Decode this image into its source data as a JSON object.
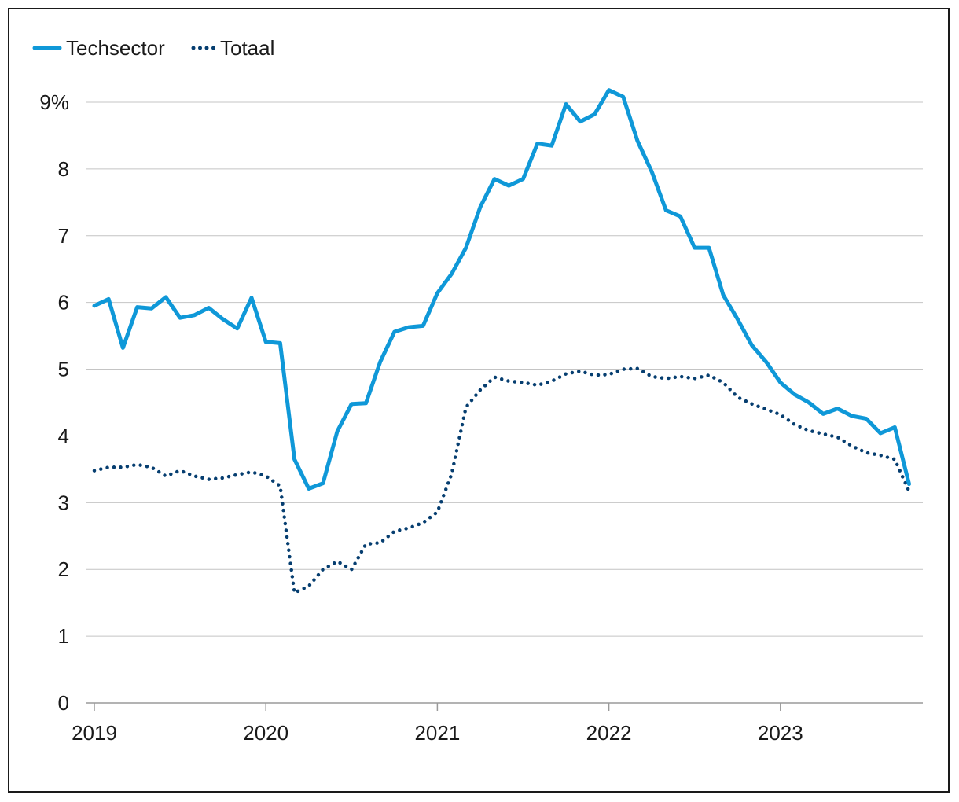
{
  "chart_data": {
    "type": "line",
    "title": "",
    "xlabel": "",
    "ylabel": "",
    "ylim": [
      0,
      9
    ],
    "xlim": [
      "2019-01",
      "2023-10"
    ],
    "y_ticks": [
      "0",
      "1",
      "2",
      "3",
      "4",
      "5",
      "6",
      "7",
      "8",
      "9%"
    ],
    "x_ticks": [
      "2019",
      "2020",
      "2021",
      "2022",
      "2023"
    ],
    "grid": "horizontal",
    "legend": "top-left",
    "x": [
      "2019-01",
      "2019-02",
      "2019-03",
      "2019-04",
      "2019-05",
      "2019-06",
      "2019-07",
      "2019-08",
      "2019-09",
      "2019-10",
      "2019-11",
      "2019-12",
      "2020-01",
      "2020-02",
      "2020-03",
      "2020-04",
      "2020-05",
      "2020-06",
      "2020-07",
      "2020-08",
      "2020-09",
      "2020-10",
      "2020-11",
      "2020-12",
      "2021-01",
      "2021-02",
      "2021-03",
      "2021-04",
      "2021-05",
      "2021-06",
      "2021-07",
      "2021-08",
      "2021-09",
      "2021-10",
      "2021-11",
      "2021-12",
      "2022-01",
      "2022-02",
      "2022-03",
      "2022-04",
      "2022-05",
      "2022-06",
      "2022-07",
      "2022-08",
      "2022-09",
      "2022-10",
      "2022-11",
      "2022-12",
      "2023-01",
      "2023-02",
      "2023-03",
      "2023-04",
      "2023-05",
      "2023-06",
      "2023-07",
      "2023-08",
      "2023-09",
      "2023-10"
    ],
    "series": [
      {
        "name": "Techsector",
        "style": "solid",
        "color": "#0f98d8",
        "values": [
          5.95,
          6.05,
          5.32,
          5.93,
          5.91,
          6.08,
          5.77,
          5.81,
          5.92,
          5.75,
          5.61,
          6.07,
          5.41,
          5.39,
          3.65,
          3.21,
          3.29,
          4.07,
          4.48,
          4.49,
          5.11,
          5.56,
          5.63,
          5.65,
          6.14,
          6.43,
          6.82,
          7.43,
          7.85,
          7.75,
          7.85,
          8.38,
          8.35,
          8.97,
          8.71,
          8.82,
          9.18,
          9.08,
          8.42,
          7.96,
          7.38,
          7.29,
          6.82,
          6.82,
          6.11,
          5.75,
          5.36,
          5.11,
          4.8,
          4.62,
          4.5,
          4.33,
          4.41,
          4.3,
          4.26,
          4.04,
          4.13,
          3.28
        ]
      },
      {
        "name": "Totaal",
        "style": "dotted",
        "color": "#063e70",
        "values": [
          3.48,
          3.53,
          3.53,
          3.57,
          3.53,
          3.4,
          3.48,
          3.4,
          3.35,
          3.37,
          3.42,
          3.46,
          3.4,
          3.25,
          1.65,
          1.75,
          2.0,
          2.12,
          2.0,
          2.38,
          2.4,
          2.57,
          2.62,
          2.7,
          2.86,
          3.43,
          4.43,
          4.69,
          4.88,
          4.82,
          4.8,
          4.76,
          4.82,
          4.93,
          4.97,
          4.91,
          4.92,
          5.0,
          5.01,
          4.89,
          4.86,
          4.89,
          4.86,
          4.91,
          4.8,
          4.58,
          4.48,
          4.4,
          4.32,
          4.17,
          4.08,
          4.03,
          3.98,
          3.85,
          3.75,
          3.71,
          3.65,
          3.17
        ]
      }
    ]
  }
}
